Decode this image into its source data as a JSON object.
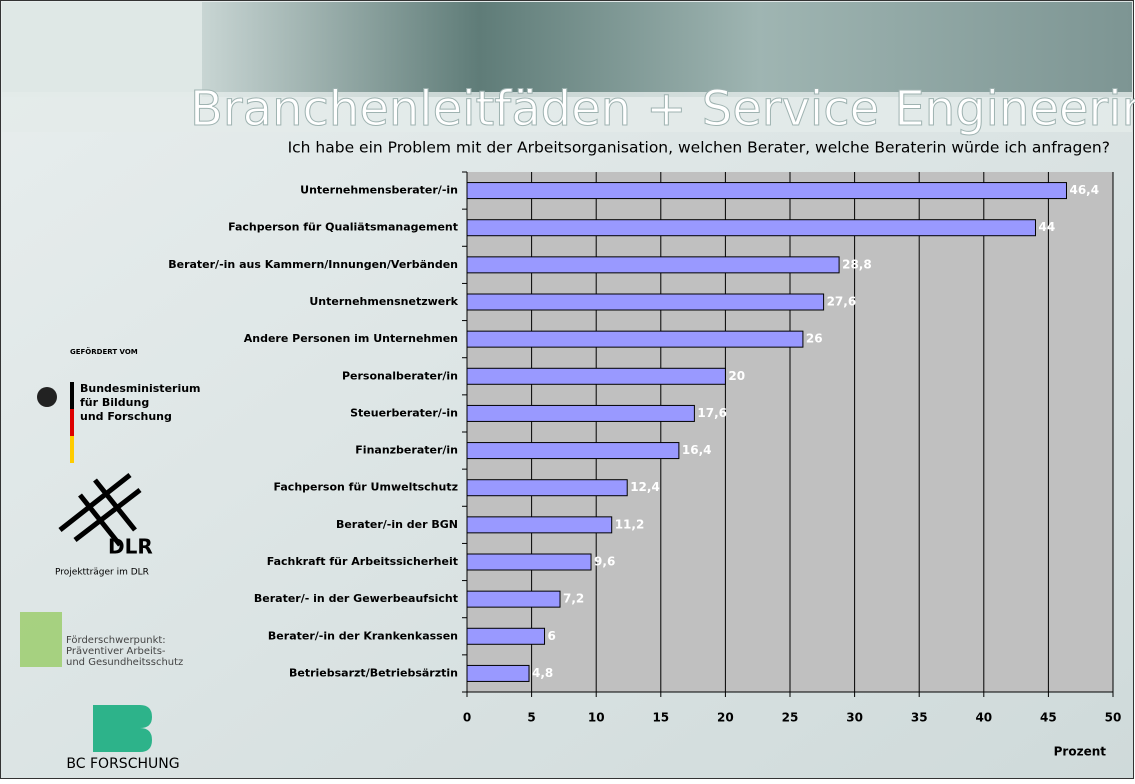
{
  "header": {
    "title": "Branchenleitfäden + Service Engineering"
  },
  "sidebar": {
    "funded_by": "GEFÖRDERT VOM",
    "ministry": [
      "Bundesministerium",
      "für Bildung",
      "und Forschung"
    ],
    "dlr": "DLR",
    "dlr_caption": "Projektträger im DLR",
    "focus": [
      "Förderschwerpunkt:",
      "Präventiver Arbeits-",
      "und Gesundheitsschutz"
    ],
    "bc": "BC FORSCHUNG"
  },
  "chart_data": {
    "type": "bar",
    "orientation": "horizontal",
    "title": "Ich habe ein Problem mit der Arbeitsorganisation, welchen Berater, welche Beraterin würde ich anfragen?",
    "x_label": "Prozent",
    "categories": [
      "Unternehmensberater/-in",
      "Fachperson für Qualiätsmanagement",
      "Berater/-in aus Kammern/Innungen/Verbänden",
      "Unternehmensnetzwerk",
      "Andere Personen im Unternehmen",
      "Personalberater/in",
      "Steuerberater/-in",
      "Finanzberater/in",
      "Fachperson für Umweltschutz",
      "Berater/-in der BGN",
      "Fachkraft für Arbeitssicherheit",
      "Berater/- in der Gewerbeaufsicht",
      "Berater/-in der Krankenkassen",
      "Betriebsarzt/Betriebsärztin"
    ],
    "values": [
      46.4,
      44,
      28.8,
      27.6,
      26,
      20,
      17.6,
      16.4,
      12.4,
      11.2,
      9.6,
      7.2,
      6,
      4.8
    ],
    "value_labels": [
      "46,4",
      "44",
      "28,8",
      "27,6",
      "26",
      "20",
      "17,6",
      "16,4",
      "12,4",
      "11,2",
      "9,6",
      "7,2",
      "6",
      "4,8"
    ],
    "color": "#9999ff",
    "xlim": [
      0,
      50
    ],
    "xticks": [
      0,
      5,
      10,
      15,
      20,
      25,
      30,
      35,
      40,
      45,
      50
    ],
    "grid": true
  }
}
